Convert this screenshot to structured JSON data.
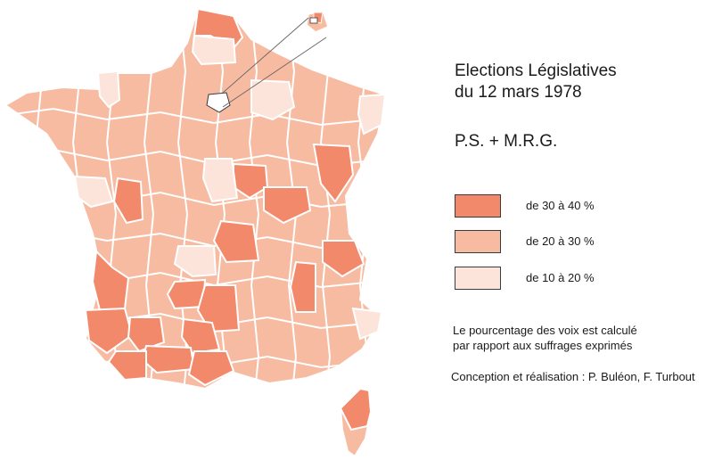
{
  "map": {
    "title_line1": "Elections Législatives",
    "title_line2": "du 12 mars 1978",
    "subtitle": "P.S. + M.R.G.",
    "colors": {
      "high": "#f2896b",
      "mid": "#f7bba2",
      "low": "#fce4da",
      "border": "#ffffff",
      "text": "#1a1a1a",
      "swatch_border": "#3a3a3a"
    },
    "legend": [
      {
        "label": "de 30 à 40 %",
        "color": "#f2896b"
      },
      {
        "label": "de 20 à 30 %",
        "color": "#f7bba2"
      },
      {
        "label": "de 10 à 20 %",
        "color": "#fce4da"
      }
    ],
    "note_line1": "Le pourcentage des voix est calculé",
    "note_line2": "par rapport aux suffrages exprimés",
    "credit": "Conception et réalisation : P. Buléon, F. Turbout"
  }
}
